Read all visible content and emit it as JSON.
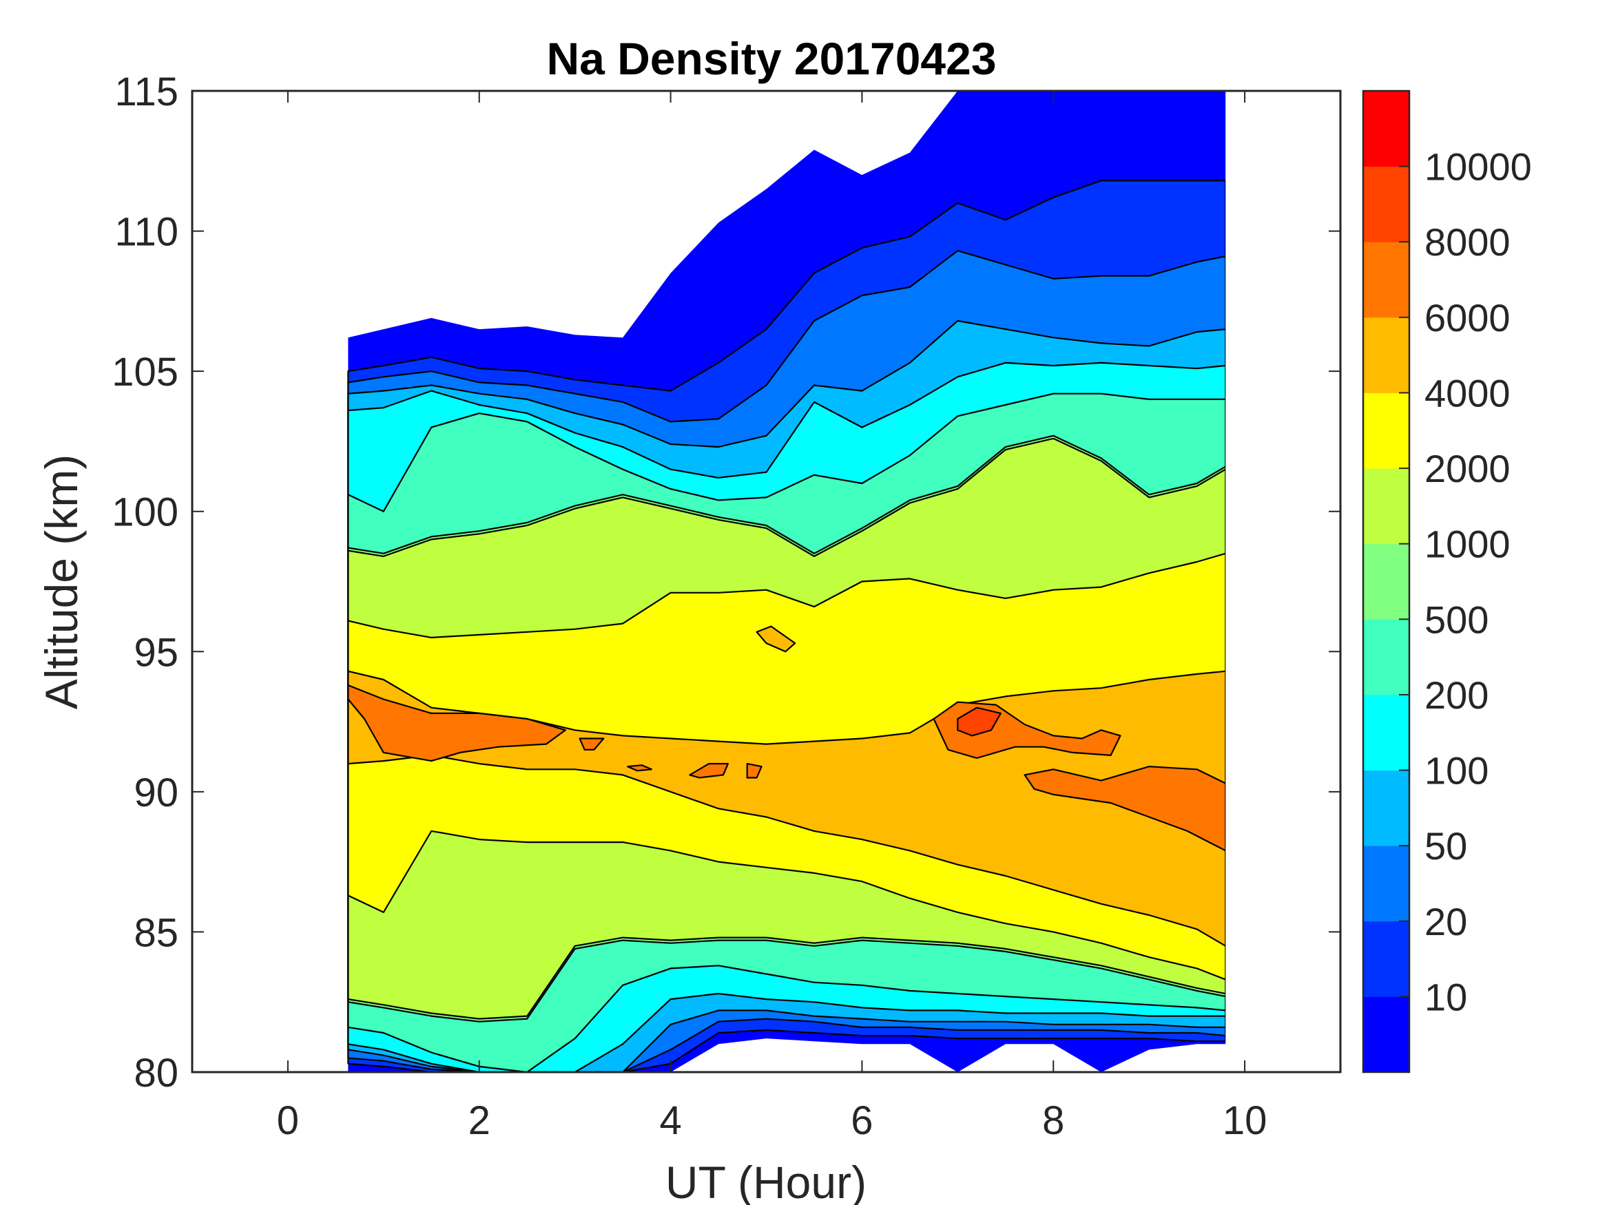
{
  "chart_data": {
    "type": "contour",
    "title": "Na Density 20170423",
    "xlabel": "UT (Hour)",
    "ylabel": "Altitude (km)",
    "xlim": [
      -1,
      11
    ],
    "ylim": [
      80,
      115
    ],
    "xticks": [
      "0",
      "2",
      "4",
      "6",
      "8",
      "10"
    ],
    "xtick_values": [
      0,
      2,
      4,
      6,
      8,
      10
    ],
    "yticks": [
      "80",
      "85",
      "90",
      "95",
      "100",
      "105",
      "110",
      "115"
    ],
    "ytick_values": [
      80,
      85,
      90,
      95,
      100,
      105,
      110,
      115
    ],
    "grid": false,
    "colorbar": {
      "placement": "right",
      "tick_labels": [
        "10",
        "20",
        "50",
        "100",
        "200",
        "500",
        "1000",
        "2000",
        "4000",
        "6000",
        "8000",
        "10000"
      ],
      "levels": [
        10,
        20,
        50,
        100,
        200,
        500,
        1000,
        2000,
        4000,
        6000,
        8000,
        10000
      ],
      "colors": [
        "#0000FF",
        "#0033FF",
        "#0077FF",
        "#00BBFF",
        "#00FFFF",
        "#40FFBF",
        "#80FF80",
        "#BFFF40",
        "#FFFF00",
        "#FFBB00",
        "#FF7700",
        "#FF4400",
        "#FF0000"
      ]
    },
    "ut": [
      0.63,
      1,
      1.5,
      2,
      2.5,
      3,
      3.5,
      4,
      4.5,
      5,
      5.5,
      6,
      6.5,
      7,
      7.5,
      8,
      8.5,
      9,
      9.5,
      9.8
    ],
    "data_top_km": [
      106.2,
      106.5,
      106.9,
      106.5,
      106.6,
      106.3,
      106.2,
      108.5,
      110.3,
      111.5,
      112.9,
      112.0,
      112.8,
      115,
      115,
      115,
      115,
      115,
      115,
      115
    ],
    "data_bottom_km": [
      80,
      80,
      80,
      80,
      80,
      80,
      80,
      80,
      81.0,
      81.2,
      81.1,
      81.0,
      81.0,
      80.0,
      81.0,
      81.0,
      80.0,
      80.8,
      81.0,
      81.0
    ],
    "contours": [
      {
        "level": 10,
        "upper_km": [
          105.0,
          105.2,
          105.5,
          105.1,
          105.0,
          104.7,
          104.5,
          104.3,
          105.3,
          106.5,
          108.5,
          109.4,
          109.8,
          111.0,
          110.4,
          111.2,
          111.8,
          111.8,
          111.8,
          111.8
        ],
        "lower_km": [
          80.3,
          80.2,
          80.0,
          80.0,
          80.0,
          80.0,
          80.0,
          80.3,
          81.4,
          81.5,
          81.4,
          81.3,
          81.3,
          81.2,
          81.2,
          81.2,
          81.2,
          81.2,
          81.1,
          81.1
        ]
      },
      {
        "level": 20,
        "upper_km": [
          104.6,
          104.8,
          105.0,
          104.6,
          104.5,
          104.2,
          103.9,
          103.2,
          103.3,
          104.5,
          106.8,
          107.7,
          108.0,
          109.3,
          108.8,
          108.3,
          108.4,
          108.4,
          108.9,
          109.1
        ],
        "lower_km": [
          80.5,
          80.4,
          80.1,
          80.0,
          80.0,
          80.0,
          80.0,
          80.8,
          81.8,
          81.9,
          81.8,
          81.6,
          81.6,
          81.5,
          81.5,
          81.5,
          81.5,
          81.4,
          81.4,
          81.3
        ]
      },
      {
        "level": 50,
        "upper_km": [
          104.2,
          104.3,
          104.5,
          104.2,
          104.0,
          103.5,
          103.1,
          102.4,
          102.3,
          102.7,
          104.5,
          104.3,
          105.3,
          106.8,
          106.5,
          106.2,
          106.0,
          105.9,
          106.4,
          106.5
        ],
        "lower_km": [
          80.8,
          80.6,
          80.2,
          80.0,
          80.0,
          80.0,
          80.0,
          81.7,
          82.2,
          82.2,
          82.0,
          81.9,
          81.8,
          81.8,
          81.8,
          81.7,
          81.7,
          81.7,
          81.6,
          81.6
        ]
      },
      {
        "level": 100,
        "upper_km": [
          103.6,
          103.7,
          104.3,
          103.8,
          103.5,
          102.8,
          102.3,
          101.5,
          101.2,
          101.4,
          103.9,
          103.0,
          103.8,
          104.8,
          105.3,
          105.2,
          105.3,
          105.2,
          105.1,
          105.2
        ],
        "lower_km": [
          81.0,
          80.8,
          80.3,
          80.0,
          80.0,
          80.0,
          81.0,
          82.6,
          82.8,
          82.6,
          82.5,
          82.3,
          82.2,
          82.2,
          82.1,
          82.1,
          82.1,
          82.0,
          82.0,
          82.0
        ]
      },
      {
        "level": 200,
        "upper_km": [
          100.6,
          100.0,
          103.0,
          103.5,
          103.2,
          102.3,
          101.5,
          100.8,
          100.4,
          100.5,
          101.3,
          101.0,
          102.0,
          103.4,
          103.8,
          104.2,
          104.2,
          104.0,
          104.0,
          104.0
        ],
        "lower_km": [
          81.6,
          81.4,
          80.7,
          80.2,
          80.0,
          81.2,
          83.1,
          83.7,
          83.8,
          83.5,
          83.2,
          83.1,
          82.9,
          82.8,
          82.7,
          82.6,
          82.5,
          82.4,
          82.3,
          82.2
        ]
      },
      {
        "level": 500,
        "upper_km": [
          98.7,
          98.5,
          99.1,
          99.3,
          99.6,
          100.2,
          100.6,
          100.2,
          99.8,
          99.5,
          98.5,
          99.4,
          100.4,
          100.9,
          102.3,
          102.7,
          101.9,
          100.6,
          101.0,
          101.6
        ],
        "lower_km": [
          82.5,
          82.3,
          82.0,
          81.8,
          81.9,
          84.4,
          84.7,
          84.6,
          84.7,
          84.7,
          84.5,
          84.7,
          84.6,
          84.5,
          84.3,
          84.0,
          83.7,
          83.3,
          82.9,
          82.7
        ]
      },
      {
        "level": 1000,
        "upper_km": [
          98.6,
          98.4,
          99.0,
          99.2,
          99.5,
          100.1,
          100.5,
          100.1,
          99.7,
          99.4,
          98.4,
          99.3,
          100.3,
          100.8,
          102.2,
          102.6,
          101.8,
          100.5,
          100.9,
          101.5
        ],
        "lower_km": [
          82.6,
          82.4,
          82.1,
          81.9,
          82.0,
          84.5,
          84.8,
          84.7,
          84.8,
          84.8,
          84.6,
          84.8,
          84.7,
          84.6,
          84.4,
          84.1,
          83.8,
          83.4,
          83.0,
          82.8
        ]
      },
      {
        "level": 2000,
        "upper_km": [
          96.1,
          95.8,
          95.5,
          95.6,
          95.7,
          95.8,
          96.0,
          97.1,
          97.1,
          97.2,
          96.6,
          97.5,
          97.6,
          97.2,
          96.9,
          97.2,
          97.3,
          97.8,
          98.2,
          98.5
        ],
        "lower_km": [
          86.3,
          85.7,
          88.6,
          88.3,
          88.2,
          88.2,
          88.2,
          87.9,
          87.5,
          87.3,
          87.1,
          86.8,
          86.2,
          85.7,
          85.3,
          85.0,
          84.6,
          84.1,
          83.7,
          83.3
        ]
      },
      {
        "level": 4000,
        "upper_km": [
          94.3,
          94.0,
          93.0,
          92.8,
          92.6,
          92.2,
          92.0,
          91.9,
          91.8,
          91.7,
          91.8,
          91.9,
          92.1,
          93.1,
          93.4,
          93.6,
          93.7,
          94.0,
          94.2,
          94.3
        ],
        "lower_km": [
          91.0,
          91.1,
          91.3,
          91.0,
          90.8,
          90.8,
          90.6,
          90.0,
          89.4,
          89.1,
          88.6,
          88.3,
          87.9,
          87.4,
          87.0,
          86.5,
          86.0,
          85.6,
          85.1,
          84.5
        ]
      }
    ],
    "islands": [
      {
        "level": 6000,
        "ut_km": [
          [
            0.63,
            93.8
          ],
          [
            1.0,
            93.3
          ],
          [
            1.5,
            92.8
          ],
          [
            2.0,
            92.8
          ],
          [
            2.5,
            92.6
          ],
          [
            2.9,
            92.2
          ],
          [
            2.7,
            91.7
          ],
          [
            2.2,
            91.6
          ],
          [
            1.8,
            91.4
          ],
          [
            1.5,
            91.1
          ],
          [
            1.0,
            91.4
          ],
          [
            0.8,
            92.6
          ],
          [
            0.63,
            93.3
          ]
        ]
      },
      {
        "level": 6000,
        "ut_km": [
          [
            3.05,
            91.9
          ],
          [
            3.3,
            91.9
          ],
          [
            3.2,
            91.5
          ],
          [
            3.1,
            91.5
          ]
        ]
      },
      {
        "level": 6000,
        "ut_km": [
          [
            4.2,
            90.6
          ],
          [
            4.4,
            91.0
          ],
          [
            4.6,
            91.0
          ],
          [
            4.55,
            90.6
          ],
          [
            4.3,
            90.5
          ]
        ]
      },
      {
        "level": 6000,
        "ut_km": [
          [
            4.8,
            91.0
          ],
          [
            4.95,
            90.9
          ],
          [
            4.9,
            90.5
          ],
          [
            4.8,
            90.5
          ]
        ]
      },
      {
        "level": 6000,
        "ut_km": [
          [
            3.55,
            90.9
          ],
          [
            3.7,
            90.95
          ],
          [
            3.8,
            90.8
          ],
          [
            3.65,
            90.75
          ]
        ]
      },
      {
        "level": 4000,
        "ut_km": [
          [
            4.9,
            95.7
          ],
          [
            5.05,
            95.9
          ],
          [
            5.3,
            95.3
          ],
          [
            5.2,
            95.0
          ],
          [
            5.0,
            95.3
          ]
        ]
      },
      {
        "level": 6000,
        "ut_km": [
          [
            6.75,
            92.6
          ],
          [
            7.0,
            93.2
          ],
          [
            7.4,
            93.1
          ],
          [
            7.7,
            92.4
          ],
          [
            8.0,
            92.0
          ],
          [
            8.3,
            91.9
          ],
          [
            8.5,
            92.2
          ],
          [
            8.7,
            92.0
          ],
          [
            8.6,
            91.3
          ],
          [
            8.2,
            91.4
          ],
          [
            7.9,
            91.6
          ],
          [
            7.6,
            91.6
          ],
          [
            7.2,
            91.2
          ],
          [
            6.9,
            91.5
          ]
        ]
      },
      {
        "level": 8000,
        "ut_km": [
          [
            7.0,
            92.6
          ],
          [
            7.2,
            93.0
          ],
          [
            7.45,
            92.8
          ],
          [
            7.35,
            92.2
          ],
          [
            7.15,
            92.0
          ],
          [
            7.0,
            92.2
          ]
        ]
      },
      {
        "level": 6000,
        "ut_km": [
          [
            7.7,
            90.6
          ],
          [
            8.0,
            90.8
          ],
          [
            8.5,
            90.4
          ],
          [
            9.0,
            90.9
          ],
          [
            9.5,
            90.8
          ],
          [
            9.8,
            90.3
          ],
          [
            9.8,
            87.9
          ],
          [
            9.4,
            88.6
          ],
          [
            9.0,
            89.1
          ],
          [
            8.6,
            89.6
          ],
          [
            8.0,
            89.9
          ],
          [
            7.8,
            90.1
          ]
        ]
      }
    ]
  }
}
